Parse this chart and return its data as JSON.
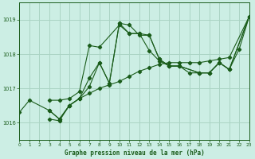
{
  "title": "Graphe pression niveau de la mer (hPa)",
  "background_color": "#cceee4",
  "grid_color": "#aad4c4",
  "line_color": "#1a5c1a",
  "xlim": [
    0,
    23
  ],
  "ylim": [
    1015.5,
    1019.5
  ],
  "yticks": [
    1016,
    1017,
    1018,
    1019
  ],
  "xticks": [
    0,
    1,
    2,
    3,
    4,
    5,
    6,
    7,
    8,
    9,
    10,
    11,
    12,
    13,
    14,
    15,
    16,
    17,
    18,
    19,
    20,
    21,
    22,
    23
  ],
  "series": [
    {
      "x": [
        0,
        1,
        3,
        4,
        5,
        6,
        7,
        8,
        9,
        10,
        11,
        12,
        13,
        14,
        15,
        16,
        17,
        18,
        19,
        20,
        21,
        23
      ],
      "y": [
        1016.3,
        1016.65,
        1016.35,
        1016.1,
        1016.5,
        1016.7,
        1016.85,
        1017.0,
        1017.1,
        1017.2,
        1017.35,
        1017.5,
        1017.6,
        1017.7,
        1017.75,
        1017.75,
        1017.75,
        1017.75,
        1017.8,
        1017.85,
        1017.9,
        1019.1
      ]
    },
    {
      "x": [
        3,
        4,
        5,
        6,
        7,
        8,
        9,
        10,
        11,
        12,
        13,
        14,
        15,
        16,
        18,
        19,
        20,
        21,
        23
      ],
      "y": [
        1016.35,
        1016.1,
        1016.5,
        1016.7,
        1017.05,
        1017.75,
        1017.15,
        1018.9,
        1018.85,
        1018.55,
        1018.55,
        1017.85,
        1017.65,
        1017.65,
        1017.45,
        1017.45,
        1017.75,
        1017.55,
        1019.1
      ]
    },
    {
      "x": [
        3,
        4,
        5,
        6,
        7,
        8,
        10,
        11,
        12,
        13,
        14,
        15,
        16,
        18,
        19,
        20,
        21,
        23
      ],
      "y": [
        1016.65,
        1016.65,
        1016.7,
        1016.9,
        1018.25,
        1018.2,
        1018.85,
        1018.6,
        1018.6,
        1018.1,
        1017.8,
        1017.65,
        1017.65,
        1017.45,
        1017.45,
        1017.75,
        1017.55,
        1019.1
      ]
    },
    {
      "x": [
        3,
        4,
        5,
        6,
        7,
        8,
        9,
        10,
        11,
        12,
        13,
        14,
        15,
        16,
        17,
        18,
        19,
        20,
        21,
        22,
        23
      ],
      "y": [
        1016.1,
        1016.05,
        1016.5,
        1016.7,
        1017.3,
        1017.75,
        1017.15,
        1018.9,
        1018.6,
        1018.6,
        1018.55,
        1017.85,
        1017.65,
        1017.65,
        1017.45,
        1017.45,
        1017.45,
        1017.75,
        1017.55,
        1018.15,
        1019.1
      ]
    }
  ]
}
